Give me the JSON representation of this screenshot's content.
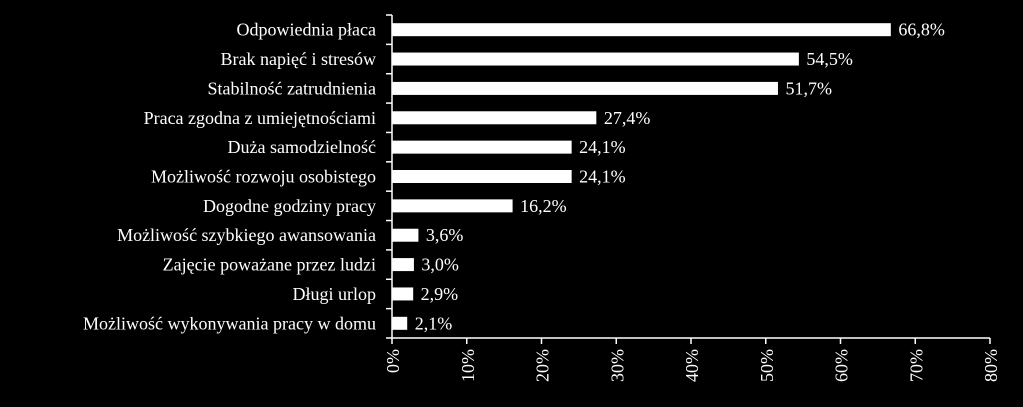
{
  "chart_data": {
    "type": "bar",
    "orientation": "horizontal",
    "categories": [
      "Odpowiednia płaca",
      "Brak napięć i stresów",
      "Stabilność zatrudnienia",
      "Praca zgodna z umiejętnościami",
      "Duża samodzielność",
      "Możliwość rozwoju osobistego",
      "Dogodne godziny pracy",
      "Możliwość szybkiego awansowania",
      "Zajęcie poważane przez ludzi",
      "Długi urlop",
      "Możliwość wykonywania pracy w domu"
    ],
    "values": [
      66.8,
      54.5,
      51.7,
      27.4,
      24.1,
      24.1,
      16.2,
      3.6,
      3.0,
      2.9,
      2.1
    ],
    "value_labels": [
      "66,8%",
      "54,5%",
      "51,7%",
      "27,4%",
      "24,1%",
      "24,1%",
      "16,2%",
      "3,6%",
      "3,0%",
      "2,9%",
      "2,1%"
    ],
    "x_ticks": [
      0,
      10,
      20,
      30,
      40,
      50,
      60,
      70,
      80
    ],
    "x_tick_labels": [
      "0%",
      "10%",
      "20%",
      "30%",
      "40%",
      "50%",
      "60%",
      "70%",
      "80%"
    ],
    "xlim": [
      0,
      80
    ],
    "title": "",
    "xlabel": "",
    "ylabel": "",
    "grid": false,
    "legend": "none",
    "colors": {
      "background": "#000000",
      "bar_fill": "#ffffff",
      "bar_stroke": "#000000",
      "text": "#ffffff",
      "axis": "#ffffff"
    }
  }
}
